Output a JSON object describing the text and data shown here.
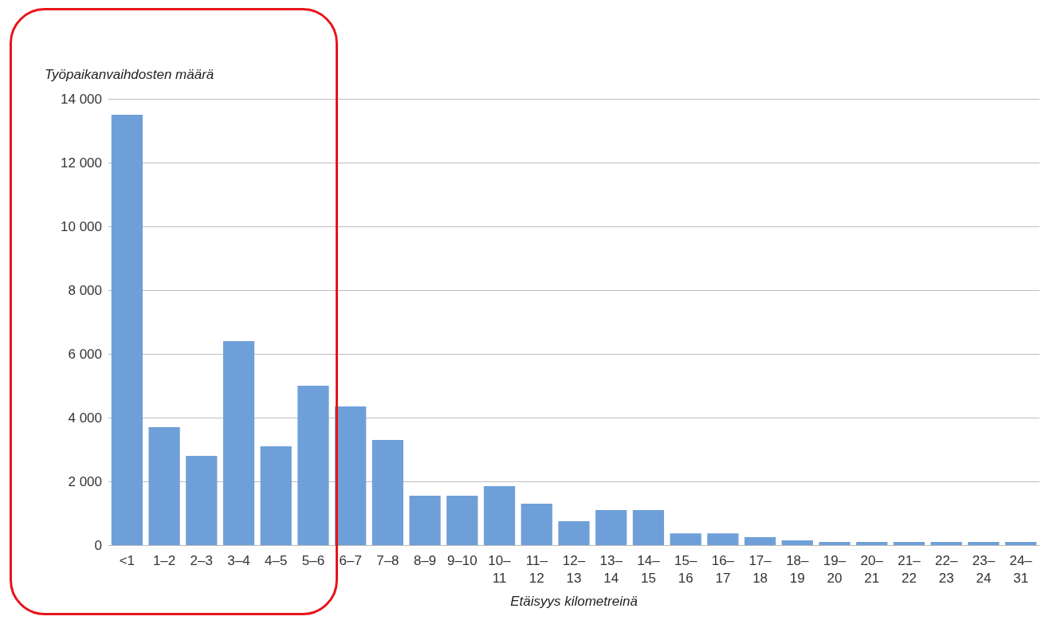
{
  "chart_data": {
    "type": "bar",
    "ylabel": "Työpaikanvaihdosten määrä",
    "xlabel": "Etäisyys kilometreinä",
    "categories": [
      "<1",
      "1–2",
      "2–3",
      "3–4",
      "4–5",
      "5–6",
      "6–7",
      "7–8",
      "8–9",
      "9–10",
      "10–11",
      "11–12",
      "12–13",
      "13–14",
      "14–15",
      "15–16",
      "16–17",
      "17–18",
      "18–19",
      "19–20",
      "20–21",
      "21–22",
      "22–23",
      "23–24",
      "24–31"
    ],
    "values": [
      13500,
      3700,
      2800,
      6400,
      3100,
      5000,
      4350,
      3300,
      1550,
      1550,
      1850,
      1300,
      750,
      1100,
      1100,
      370,
      370,
      250,
      150,
      100,
      100,
      100,
      100,
      100,
      100
    ],
    "color": "#6f9fd8",
    "ylim": [
      0,
      14000
    ],
    "yticks": [
      {
        "value": 0,
        "label": "0"
      },
      {
        "value": 2000,
        "label": "2 000"
      },
      {
        "value": 4000,
        "label": "4 000"
      },
      {
        "value": 6000,
        "label": "6 000"
      },
      {
        "value": 8000,
        "label": "8 000"
      },
      {
        "value": 10000,
        "label": "10 000"
      },
      {
        "value": 12000,
        "label": "12 000"
      },
      {
        "value": 14000,
        "label": "14 000"
      }
    ],
    "grid": "y"
  }
}
